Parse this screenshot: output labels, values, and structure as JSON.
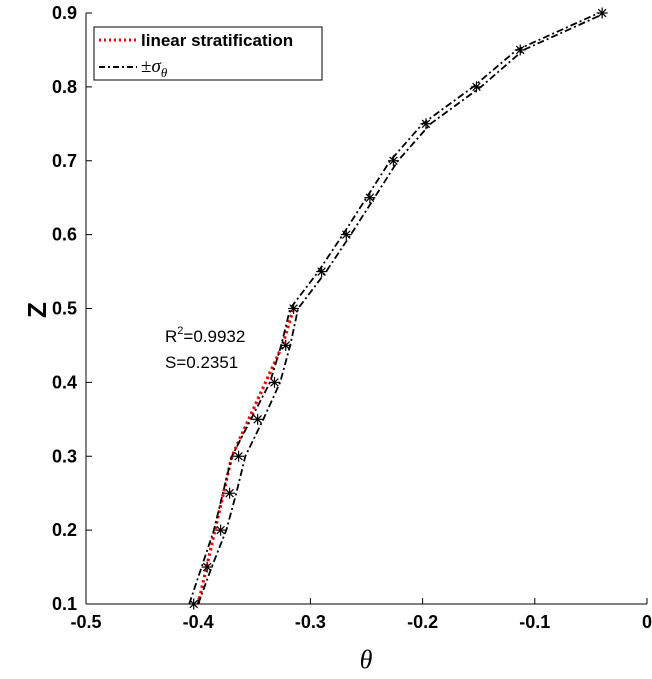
{
  "chart_data": {
    "type": "line",
    "xlabel": "θ",
    "ylabel": "Z",
    "xlim": [
      -0.5,
      0
    ],
    "ylim": [
      0.1,
      0.9
    ],
    "xticks": [
      "-0.5",
      "-0.4",
      "-0.3",
      "-0.2",
      "-0.1",
      "0"
    ],
    "yticks": [
      "0.1",
      "0.2",
      "0.3",
      "0.4",
      "0.5",
      "0.6",
      "0.7",
      "0.8",
      "0.9"
    ],
    "xtick_values": [
      -0.5,
      -0.4,
      -0.3,
      -0.2,
      -0.1,
      0
    ],
    "ytick_values": [
      0.1,
      0.2,
      0.3,
      0.4,
      0.5,
      0.6,
      0.7,
      0.8,
      0.9
    ],
    "grid": false,
    "legend_position": "top-left",
    "series": [
      {
        "name": "linear stratification",
        "style": "dotted",
        "color": "#ff0000",
        "x": [
          -0.4,
          -0.385,
          -0.37,
          -0.355,
          -0.34,
          -0.325,
          -0.315
        ],
        "y": [
          0.1,
          0.2,
          0.3,
          0.35,
          0.4,
          0.45,
          0.5
        ]
      },
      {
        "name_prefix": "±",
        "name_symbol": "σ",
        "name_subscript": "θ",
        "style": "dashdot",
        "color": "#000000",
        "x": [
          -0.408,
          -0.397,
          -0.386,
          -0.378,
          -0.37,
          -0.353,
          -0.336,
          -0.326,
          -0.318,
          -0.293,
          -0.271,
          -0.25,
          -0.229,
          -0.2,
          -0.155,
          -0.116,
          -0.043
        ],
        "y": [
          0.1,
          0.15,
          0.2,
          0.25,
          0.3,
          0.35,
          0.4,
          0.45,
          0.5,
          0.55,
          0.6,
          0.65,
          0.7,
          0.75,
          0.8,
          0.85,
          0.9
        ]
      },
      {
        "style": "dashdot",
        "color": "#000000",
        "x": [
          -0.4,
          -0.388,
          -0.375,
          -0.366,
          -0.358,
          -0.342,
          -0.327,
          -0.318,
          -0.311,
          -0.286,
          -0.264,
          -0.243,
          -0.222,
          -0.193,
          -0.148,
          -0.11,
          -0.037
        ],
        "y": [
          0.1,
          0.15,
          0.2,
          0.25,
          0.3,
          0.35,
          0.4,
          0.45,
          0.5,
          0.55,
          0.6,
          0.65,
          0.7,
          0.75,
          0.8,
          0.85,
          0.9
        ]
      }
    ],
    "markers": {
      "symbol": "*",
      "color": "#000000",
      "x": [
        -0.404,
        -0.392,
        -0.38,
        -0.372,
        -0.364,
        -0.347,
        -0.332,
        -0.322,
        -0.315,
        -0.29,
        -0.268,
        -0.247,
        -0.226,
        -0.197,
        -0.152,
        -0.113,
        -0.04
      ],
      "y": [
        0.1,
        0.15,
        0.2,
        0.25,
        0.3,
        0.35,
        0.4,
        0.45,
        0.5,
        0.55,
        0.6,
        0.65,
        0.7,
        0.75,
        0.8,
        0.85,
        0.9
      ]
    },
    "annotations": {
      "r_label": "R",
      "r_sup": "2",
      "r_value": "=0.9932",
      "s_text": "S=0.2351"
    }
  }
}
